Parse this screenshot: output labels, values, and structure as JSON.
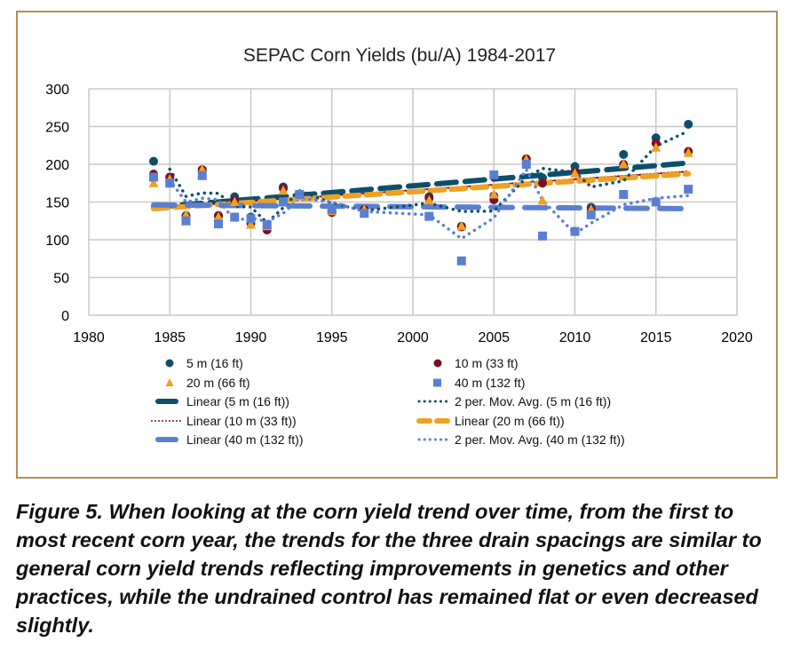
{
  "chart_data": {
    "type": "scatter",
    "title": "SEPAC Corn Yields (bu/A) 1984-2017",
    "xlabel": "",
    "ylabel": "",
    "xlim": [
      1980,
      2020
    ],
    "ylim": [
      0,
      300
    ],
    "xticks": [
      1980,
      1985,
      1990,
      1995,
      2000,
      2005,
      2010,
      2015,
      2020
    ],
    "yticks": [
      0,
      50,
      100,
      150,
      200,
      250,
      300
    ],
    "grid": true,
    "legend_position": "bottom",
    "x": [
      1984,
      1985,
      1986,
      1987,
      1988,
      1989,
      1990,
      1991,
      1992,
      1993,
      1995,
      1997,
      2001,
      2003,
      2005,
      2007,
      2008,
      2010,
      2011,
      2013,
      2015,
      2017
    ],
    "series": [
      {
        "name": "5 m (16 ft)",
        "color": "#0d4f6b",
        "marker": "circle",
        "values": [
          204,
          183,
          132,
          192,
          131,
          157,
          130,
          115,
          170,
          160,
          137,
          140,
          157,
          118,
          158,
          207,
          182,
          197,
          143,
          213,
          235,
          253
        ]
      },
      {
        "name": "10 m (33 ft)",
        "color": "#7a0f2a",
        "marker": "circle",
        "values": [
          187,
          183,
          130,
          193,
          132,
          152,
          122,
          113,
          168,
          160,
          136,
          140,
          155,
          117,
          153,
          207,
          175,
          190,
          140,
          200,
          228,
          217
        ]
      },
      {
        "name": "20 m (66 ft)",
        "color": "#f0a020",
        "marker": "triangle",
        "values": [
          175,
          180,
          133,
          193,
          130,
          150,
          120,
          118,
          165,
          158,
          138,
          140,
          152,
          118,
          160,
          206,
          152,
          188,
          140,
          200,
          222,
          215
        ]
      },
      {
        "name": "40 m (132 ft)",
        "color": "#5b7fd0",
        "marker": "square",
        "values": [
          183,
          175,
          125,
          185,
          121,
          130,
          128,
          120,
          150,
          160,
          140,
          135,
          131,
          72,
          186,
          200,
          105,
          111,
          133,
          160,
          150,
          167
        ]
      }
    ],
    "trendlines": [
      {
        "label": "Linear (5 m (16 ft))",
        "series": 0,
        "kind": "linear",
        "color": "#0d4f6b"
      },
      {
        "label": "Linear (10 m (33 ft))",
        "series": 1,
        "kind": "linear",
        "color": "#7a0f2a"
      },
      {
        "label": "Linear (20 m (66 ft))",
        "series": 2,
        "kind": "linear",
        "color": "#f0a020"
      },
      {
        "label": "Linear (40 m (132 ft))",
        "series": 3,
        "kind": "linear",
        "color": "#5b7fd0"
      },
      {
        "label": "2 per. Mov. Avg. (5 m (16 ft))",
        "series": 0,
        "kind": "moving-average",
        "period": 2,
        "color": "#0d4f6b"
      },
      {
        "label": "2 per. Mov. Avg. (40 m (132 ft))",
        "series": 3,
        "kind": "moving-average",
        "period": 2,
        "color": "#5b7fd0"
      }
    ],
    "legend": [
      "5 m (16 ft)",
      "10 m (33 ft)",
      "20 m (66 ft)",
      "40 m (132 ft)",
      "Linear (5 m (16 ft))",
      "2 per. Mov. Avg. (5 m (16 ft))",
      "Linear (10 m (33 ft))",
      "Linear (20 m (66 ft))",
      "Linear (40 m (132 ft))",
      "2 per. Mov. Avg. (40 m (132 ft))"
    ]
  },
  "caption": "Figure 5. When looking at the corn yield trend over time, from the first to most recent corn year, the trends for the three drain spacings are similar to general corn yield trends reflecting improvements in genetics and other practices, while the undrained control has remained flat or even decreased slightly.",
  "frame_color": "#b48f5a"
}
